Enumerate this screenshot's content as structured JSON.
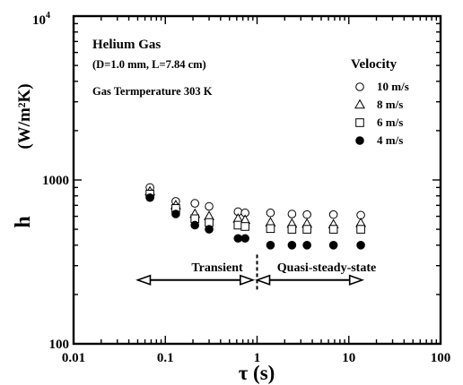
{
  "chart_data": {
    "type": "scatter",
    "x_scale": "log",
    "y_scale": "log",
    "xlim": [
      0.01,
      100
    ],
    "ylim": [
      100,
      10000
    ],
    "xlabel": "τ (s)",
    "ylabel": "h",
    "ylabel_unit": "(W/m²K)",
    "y_top_tick": "10",
    "y_top_tick_exp": "4",
    "x_ticks": [
      {
        "value": 0.01,
        "label": "0.01"
      },
      {
        "value": 0.1,
        "label": "0.1"
      },
      {
        "value": 1,
        "label": "1"
      },
      {
        "value": 10,
        "label": "10"
      },
      {
        "value": 100,
        "label": "100"
      }
    ],
    "y_ticks": [
      {
        "value": 100,
        "label": "100"
      },
      {
        "value": 1000,
        "label": "1000"
      }
    ],
    "grid": false,
    "annotations": {
      "title1": "Helium Gas",
      "title2": "(D=1.0 mm, L=7.84 cm)",
      "title3": "Gas Termperature 303 K",
      "legend_title": "Velocity",
      "transient": "Transient",
      "quasi": "Quasi-steady-state"
    },
    "regions": {
      "transient_range": [
        0.05,
        0.9
      ],
      "quasi_range": [
        1.0,
        14
      ],
      "arrow_y": 245,
      "divider_x": 1.0,
      "divider_y": [
        210,
        350
      ]
    },
    "legend_position": "top-right",
    "series": [
      {
        "name": "10 m/s",
        "marker": "circle-open",
        "x": [
          0.068,
          0.13,
          0.21,
          0.3,
          0.62,
          0.74,
          1.4,
          2.4,
          3.5,
          6.8,
          13.5
        ],
        "y": [
          900,
          740,
          720,
          690,
          640,
          630,
          630,
          620,
          615,
          615,
          610
        ]
      },
      {
        "name": "8 m/s",
        "marker": "triangle-open",
        "x": [
          0.068,
          0.13,
          0.21,
          0.3,
          0.62,
          0.74,
          1.4,
          2.4,
          3.5,
          6.8,
          13.5
        ],
        "y": [
          850,
          700,
          620,
          600,
          580,
          570,
          550,
          540,
          540,
          535,
          545
        ]
      },
      {
        "name": "6 m/s",
        "marker": "square-open",
        "x": [
          0.068,
          0.13,
          0.21,
          0.3,
          0.62,
          0.74,
          1.4,
          2.4,
          3.5,
          6.8,
          13.5
        ],
        "y": [
          820,
          670,
          580,
          550,
          530,
          520,
          505,
          500,
          500,
          500,
          500
        ]
      },
      {
        "name": "4 m/s",
        "marker": "circle-filled",
        "x": [
          0.068,
          0.13,
          0.21,
          0.3,
          0.62,
          0.74,
          1.4,
          2.4,
          3.5,
          6.8,
          13.5
        ],
        "y": [
          780,
          620,
          530,
          500,
          440,
          440,
          400,
          400,
          400,
          400,
          400
        ]
      }
    ]
  }
}
